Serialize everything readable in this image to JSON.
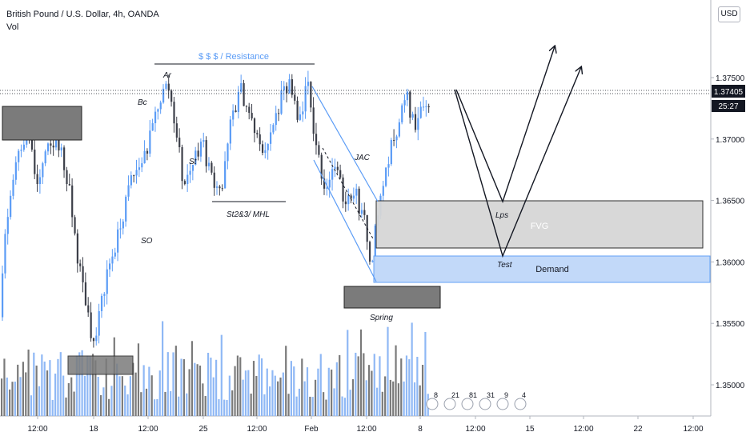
{
  "header": {
    "symbol_line": "British Pound / U.S. Dollar, 4h, OANDA",
    "indicator_line": "Vol",
    "currency_button": "USD"
  },
  "colors": {
    "up": "#5b9cf6",
    "down": "#3c3f49",
    "vol_up": "#8fb8f5",
    "vol_down": "#7a7a7a",
    "zone_dark": "#7b7b7b",
    "fvg": "#d6d6d6",
    "demand": "#bfd7f9",
    "resistance_text": "#5b9cf6"
  },
  "chart_data": {
    "type": "candlestick",
    "price_axis": {
      "ticks": [
        "1.37500",
        "1.37000",
        "1.36500",
        "1.36000",
        "1.35500",
        "1.35000"
      ],
      "tick_values": [
        1.375,
        1.37,
        1.365,
        1.36,
        1.355,
        1.35
      ],
      "range": [
        1.3472,
        1.3799
      ]
    },
    "time_axis": {
      "labels": [
        "12:00",
        "18",
        "12:00",
        "25",
        "12:00",
        "Feb",
        "12:00",
        "8",
        "12:00",
        "15",
        "12:00",
        "22",
        "12:00"
      ]
    },
    "last_price": {
      "label": "1.37405",
      "value": 1.37405,
      "countdown": "25:27"
    },
    "annotations": {
      "resistance_label": "$ $ $ / Resistance",
      "wyckoff_labels": [
        "Ar",
        "Bc",
        "St",
        "SO",
        "St2&3/ MHL",
        "JAC",
        "Spring",
        "Lps",
        "Test"
      ],
      "zones": [
        "FVG",
        "Demand"
      ],
      "event_flags": [
        "8",
        "21",
        "81",
        "31",
        "9",
        "4"
      ]
    }
  }
}
